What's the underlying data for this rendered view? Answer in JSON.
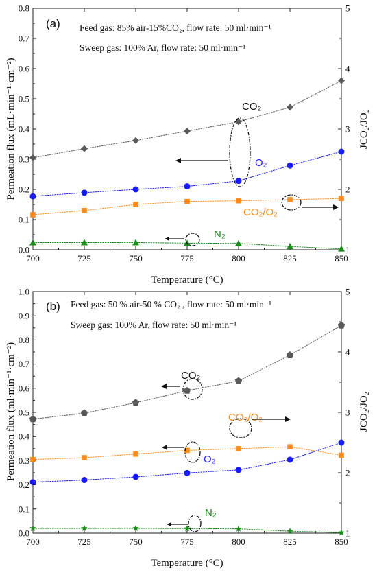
{
  "chart_data": [
    {
      "type": "line",
      "panel_label": "(a)",
      "annotations": [
        "Feed gas: 85% air-15%CO₂, flow rate: 50 ml·min⁻¹",
        "Sweep gas: 100% Ar, flow rate: 50 ml·min⁻¹"
      ],
      "xlabel": "Temperature (°C)",
      "ylabel": "Permeation flux (mL·min⁻¹·cm⁻²)",
      "y2label": "JCO₂/JO₂",
      "x": [
        700,
        725,
        750,
        775,
        800,
        825,
        850
      ],
      "xlim": [
        700,
        850
      ],
      "ylim": [
        0,
        0.8
      ],
      "y2lim": [
        1,
        5
      ],
      "yticks": [
        "0.0",
        "0.1",
        "0.2",
        "0.3",
        "0.4",
        "0.5",
        "0.6",
        "0.7",
        "0.8"
      ],
      "y2ticks": [
        "1",
        "2",
        "3",
        "4",
        "5"
      ],
      "series": [
        {
          "name": "CO₂",
          "axis": "left",
          "marker": "diamond",
          "color": "#5a5a5a",
          "values": [
            0.305,
            0.335,
            0.362,
            0.393,
            0.424,
            0.472,
            0.56
          ]
        },
        {
          "name": "O₂",
          "axis": "left",
          "marker": "circle",
          "color": "#1a1aff",
          "values": [
            0.177,
            0.189,
            0.2,
            0.21,
            0.228,
            0.279,
            0.325
          ]
        },
        {
          "name": "CO₂/O₂",
          "axis": "right",
          "marker": "square",
          "color": "#ff8c1a",
          "values": [
            1.58,
            1.65,
            1.75,
            1.8,
            1.81,
            1.83,
            1.85
          ]
        },
        {
          "name": "N₂",
          "axis": "left",
          "marker": "triangle",
          "color": "#1a8c1a",
          "values": [
            0.024,
            0.024,
            0.024,
            0.022,
            0.021,
            0.011,
            0.003
          ]
        }
      ]
    },
    {
      "type": "line",
      "panel_label": "(b)",
      "annotations": [
        "Feed gas: 50 % air-50 % CO₂ , flow rate: 50 ml·min⁻¹",
        "Sweep gas: 100% Ar, flow rate: 50 ml·min⁻¹"
      ],
      "xlabel": "Temperature (°C)",
      "ylabel": "Permeation flux (ml·min⁻¹·cm⁻²)",
      "y2label": "JCO₂/JO₂",
      "x": [
        700,
        725,
        750,
        775,
        800,
        825,
        850
      ],
      "xlim": [
        700,
        850
      ],
      "ylim": [
        0,
        1.0
      ],
      "y2lim": [
        1,
        5
      ],
      "yticks": [
        "0.0",
        "0.1",
        "0.2",
        "0.3",
        "0.4",
        "0.5",
        "0.6",
        "0.7",
        "0.8",
        "0.9",
        "1.0"
      ],
      "y2ticks": [
        "1",
        "2",
        "3",
        "4",
        "5"
      ],
      "series": [
        {
          "name": "CO₂",
          "axis": "left",
          "marker": "pentagon",
          "color": "#5a5a5a",
          "values": [
            0.472,
            0.497,
            0.54,
            0.59,
            0.63,
            0.737,
            0.86
          ]
        },
        {
          "name": "CO₂/O₂",
          "axis": "right",
          "marker": "square",
          "color": "#ff8c1a",
          "values": [
            2.22,
            2.25,
            2.31,
            2.37,
            2.4,
            2.43,
            2.29
          ]
        },
        {
          "name": "O₂",
          "axis": "left",
          "marker": "circle",
          "color": "#1a1aff",
          "values": [
            0.211,
            0.22,
            0.233,
            0.249,
            0.262,
            0.304,
            0.375
          ]
        },
        {
          "name": "N₂",
          "axis": "left",
          "marker": "star",
          "color": "#1a8c1a",
          "values": [
            0.02,
            0.02,
            0.02,
            0.019,
            0.018,
            0.008,
            0.002
          ]
        }
      ]
    }
  ]
}
